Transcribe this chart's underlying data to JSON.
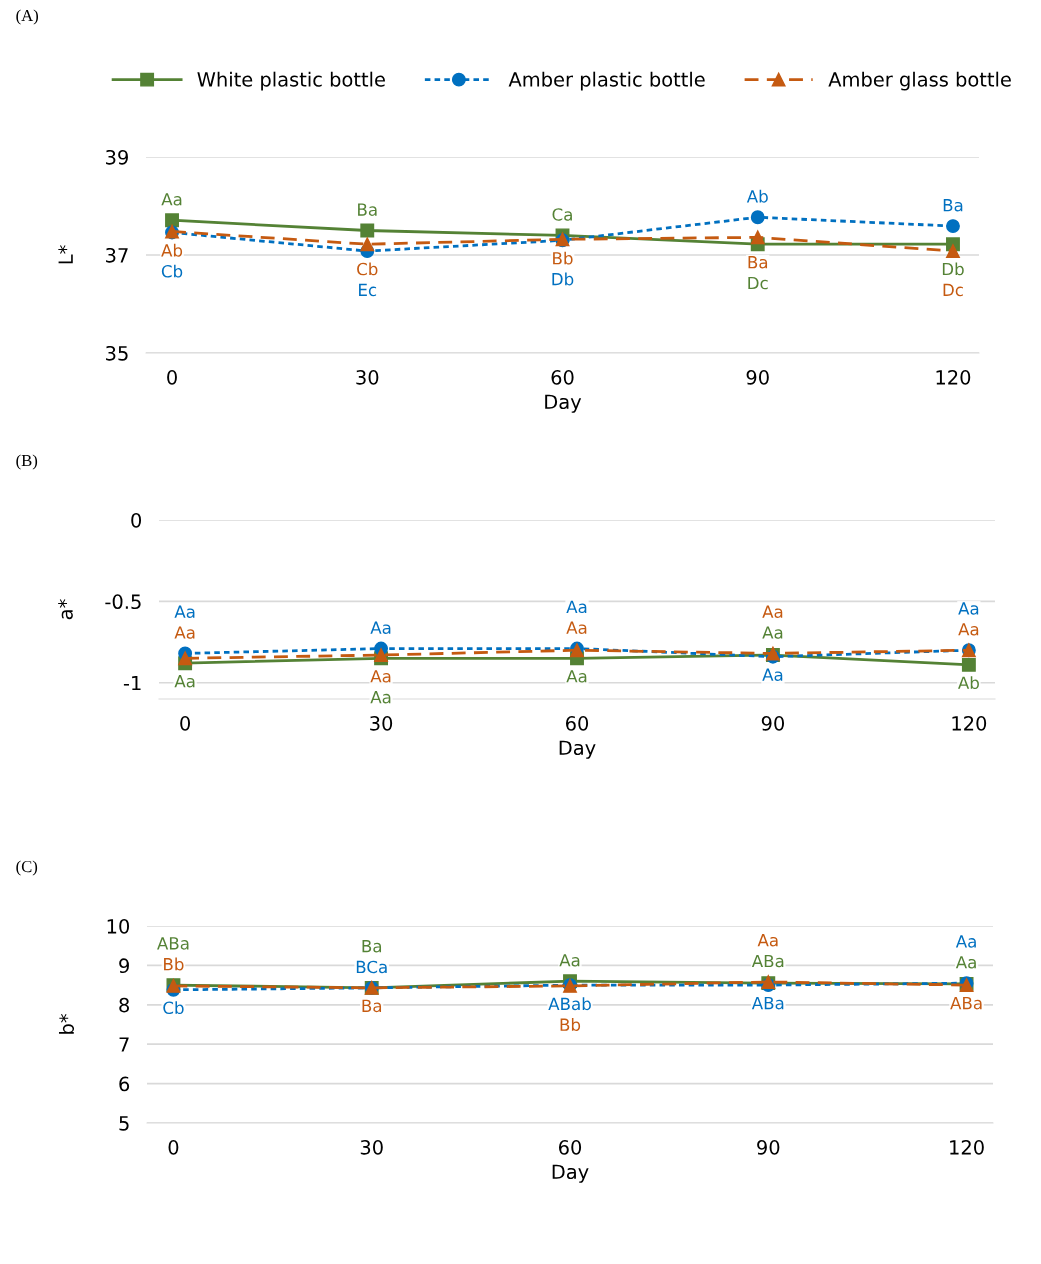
{
  "chart_data": [
    {
      "type": "line",
      "title": "(A)",
      "xlabel": "Day",
      "ylabel": "L*",
      "x": [
        0,
        30,
        60,
        90,
        120
      ],
      "xlim": [
        -4,
        124
      ],
      "xticks": [
        0,
        30,
        60,
        90,
        120
      ],
      "ylim": [
        35,
        39
      ],
      "yticks": [
        35,
        37,
        39
      ],
      "grid": "y",
      "legend": "top",
      "series": [
        {
          "name": "White plastic bottle",
          "color": "#548235",
          "marker": "square",
          "line_style": "solid",
          "values": [
            37.71,
            37.5,
            37.4,
            37.22,
            37.22
          ],
          "value_labels": [
            "Aa",
            "Ba",
            "Ca",
            "Dc",
            "Db"
          ]
        },
        {
          "name": "Amber plastic bottle",
          "color": "#0070c0",
          "marker": "circle",
          "line_style": "dotted",
          "values": [
            37.46,
            37.08,
            37.3,
            37.77,
            37.59
          ],
          "value_labels": [
            "Cb",
            "Ec",
            "Db",
            "Ab",
            "Ba"
          ]
        },
        {
          "name": "Amber glass bottle",
          "color": "#c55a11",
          "marker": "triangle",
          "line_style": "dashed",
          "values": [
            37.48,
            37.22,
            37.32,
            37.36,
            37.08
          ],
          "value_labels": [
            "Ab",
            "Cb",
            "Bb",
            "Ba",
            "Dc"
          ]
        }
      ]
    },
    {
      "type": "line",
      "title": "(B)",
      "xlabel": "Day",
      "ylabel": "a*",
      "x": [
        0,
        30,
        60,
        90,
        120
      ],
      "xlim": [
        -4,
        124
      ],
      "xticks": [
        0,
        30,
        60,
        90,
        120
      ],
      "ylim": [
        -1.1,
        0
      ],
      "yticks": [
        -1,
        -0.5,
        0
      ],
      "grid": "y",
      "legend": false,
      "series": [
        {
          "color": "#548235",
          "marker": "square",
          "line_style": "solid",
          "values": [
            -0.88,
            -0.85,
            -0.85,
            -0.83,
            -0.89
          ],
          "value_labels": [
            "Aa",
            "Aa",
            "Aa",
            "Aa",
            "Ab"
          ]
        },
        {
          "color": "#0070c0",
          "marker": "circle",
          "line_style": "dotted",
          "values": [
            -0.82,
            -0.79,
            -0.79,
            -0.84,
            -0.8
          ],
          "value_labels": [
            "Aa",
            "Aa",
            "Aa",
            "Aa",
            "Aa"
          ]
        },
        {
          "color": "#c55a11",
          "marker": "triangle",
          "line_style": "dashed",
          "values": [
            -0.85,
            -0.83,
            -0.8,
            -0.82,
            -0.8
          ],
          "value_labels": [
            "Aa",
            "Aa",
            "Aa",
            "Aa",
            "Aa"
          ]
        }
      ]
    },
    {
      "type": "line",
      "title": "(C)",
      "xlabel": "Day",
      "ylabel": "b*",
      "x": [
        0,
        30,
        60,
        90,
        120
      ],
      "xlim": [
        -4,
        124
      ],
      "xticks": [
        0,
        30,
        60,
        90,
        120
      ],
      "ylim": [
        5,
        10
      ],
      "yticks": [
        5,
        6,
        7,
        8,
        9,
        10
      ],
      "grid": "y",
      "legend": false,
      "series": [
        {
          "color": "#548235",
          "marker": "square",
          "line_style": "solid",
          "values": [
            8.5,
            8.43,
            8.6,
            8.55,
            8.53
          ],
          "value_labels": [
            "ABa",
            "Ba",
            "Aa",
            "ABa",
            "Aa"
          ]
        },
        {
          "color": "#0070c0",
          "marker": "circle",
          "line_style": "dotted",
          "values": [
            8.38,
            8.43,
            8.5,
            8.5,
            8.55
          ],
          "value_labels": [
            "Cb",
            "BCa",
            "ABab",
            "ABa",
            "Aa"
          ]
        },
        {
          "color": "#c55a11",
          "marker": "triangle",
          "line_style": "dashed",
          "values": [
            8.48,
            8.43,
            8.48,
            8.58,
            8.5
          ],
          "value_labels": [
            "Bb",
            "Ba",
            "Bb",
            "Aa",
            "ABa"
          ]
        }
      ]
    }
  ]
}
